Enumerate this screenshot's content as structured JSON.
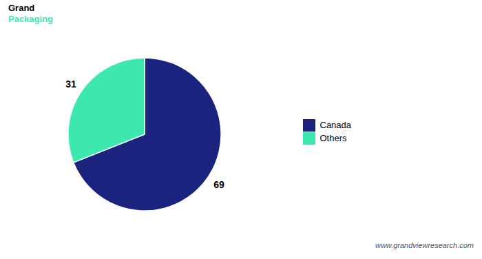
{
  "chart_data": {
    "type": "pie",
    "categories": [
      "Canada",
      "Others"
    ],
    "values": [
      69,
      31
    ],
    "colors": [
      "#1a237e",
      "#3de8b0"
    ],
    "data_labels": true,
    "legend": "right",
    "annotations": [
      "Grand",
      "Packaging",
      "www.grandviewresearch.com"
    ]
  }
}
